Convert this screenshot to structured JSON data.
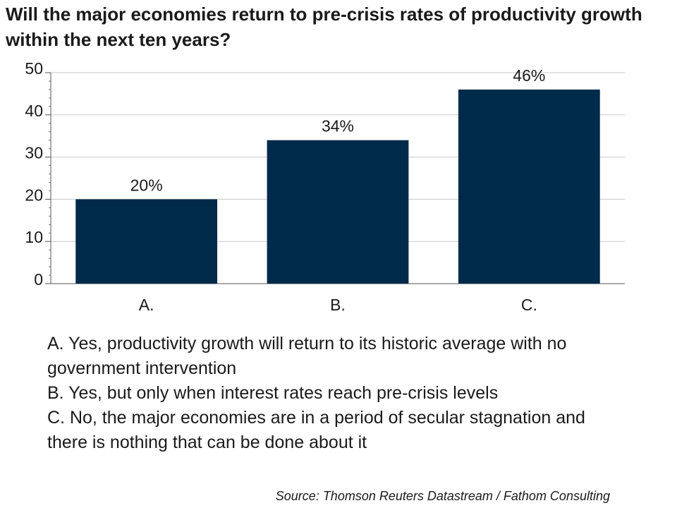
{
  "title": "Will the major economies return to pre-crisis rates of productivity growth within the next ten years?",
  "chart_data": {
    "type": "bar",
    "categories": [
      "A.",
      "B.",
      "C."
    ],
    "values": [
      20,
      34,
      46
    ],
    "data_labels": [
      "20%",
      "34%",
      "46%"
    ],
    "ylim": [
      0,
      50
    ],
    "yticks": [
      0,
      10,
      20,
      30,
      40,
      50
    ],
    "grid": true,
    "bar_color": "#002a4a"
  },
  "legend": {
    "lines": [
      "A. Yes, productivity growth will return to its historic average with no",
      "government intervention",
      "B. Yes, but only when interest rates reach pre-crisis levels",
      "C. No, the major economies are in a period of secular stagnation and",
      "there is nothing that can be done about it"
    ]
  },
  "source": "Source: Thomson Reuters Datastream / Fathom Consulting"
}
